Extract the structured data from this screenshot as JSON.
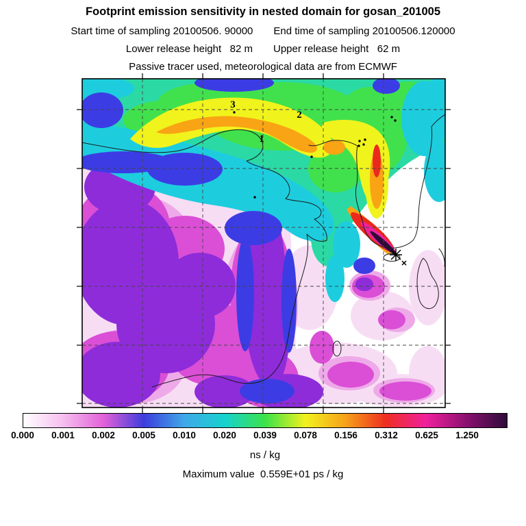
{
  "header": {
    "title": "Footprint emission sensitivity in nested domain for gosan_201005",
    "start_time": "Start time of sampling 20100506. 90000",
    "end_time": "End time of sampling 20100506.120000",
    "lower_release": "Lower release height   82 m",
    "upper_release": "Upper release height   62 m",
    "tracer_line": "Passive tracer used, meteorological data are from ECMWF"
  },
  "map": {
    "point_labels": {
      "p1": "1",
      "p2": "2",
      "p3": "3"
    },
    "station": "gosan"
  },
  "colorbar": {
    "ticks": [
      "0.000",
      "0.001",
      "0.002",
      "0.005",
      "0.010",
      "0.020",
      "0.039",
      "0.078",
      "0.156",
      "0.312",
      "0.625",
      "1.250"
    ],
    "stops": [
      "#ffffff",
      "#f5bdee",
      "#e160d8",
      "#3d3ddd",
      "#3fa8e8",
      "#16d2cf",
      "#3be24a",
      "#f2f21e",
      "#f6a01a",
      "#ee2e20",
      "#f0219d",
      "#8a1070"
    ],
    "over_color": "#2e0c39",
    "units": "ns / kg"
  },
  "footer": {
    "max_value_label": "Maximum value  0.559E+01 ps / kg"
  },
  "map_colors": {
    "pale_pink": "#f7ddf4",
    "pink": "#eeaae8",
    "magenta": "#da4fd6",
    "purple": "#8e2cda",
    "blue": "#3c3ce4",
    "cyan": "#1dcdde",
    "teal": "#2bd9a4",
    "green": "#41e14d",
    "yellow": "#f1f31c",
    "orange": "#f8a414",
    "red": "#eb2a1c",
    "hot_pink": "#f0219d",
    "dark_core": "#2e0c39",
    "coastline": "#1a1a1a"
  },
  "chart_data": {
    "type": "heatmap",
    "title": "Footprint emission sensitivity in nested domain for gosan_201005",
    "subtitles": [
      "Start time of sampling 20100506. 90000",
      "End time of sampling 20100506.120000",
      "Lower release height 82 m",
      "Upper release height 62 m",
      "Passive tracer used, meteorological data are from ECMWF"
    ],
    "colorbar_levels": [
      0.0,
      0.001,
      0.002,
      0.005,
      0.01,
      0.02,
      0.039,
      0.078,
      0.156,
      0.312,
      0.625,
      1.25
    ],
    "colorbar_colors": [
      "#ffffff",
      "#f5bdee",
      "#e160d8",
      "#3d3ddd",
      "#3fa8e8",
      "#16d2cf",
      "#3be24a",
      "#f2f21e",
      "#f6a01a",
      "#ee2e20",
      "#f0219d",
      "#8a1070",
      "#2e0c39"
    ],
    "colorbar_units": "ns / kg",
    "max_value": "0.559E+01 ps / kg",
    "station": "gosan",
    "legend_position": "bottom",
    "grid": "dashed",
    "map_annotations": [
      {
        "label": "1",
        "note": "plume marker, upper-center of domain"
      },
      {
        "label": "2",
        "note": "plume marker, upper-center-right of domain"
      },
      {
        "label": "3",
        "note": "plume marker, upper-left-center of domain"
      }
    ],
    "description": "Footprint emission sensitivity plume over East Asia; maximum sensitivity (red/pink/dark core) extends northwest from the Gosan receptor on Jeju Island; moderate sensitivity (yellow-green-cyan band) arcs across northern China; low sensitivity (purple/magenta/pink) covers central and southern China."
  }
}
